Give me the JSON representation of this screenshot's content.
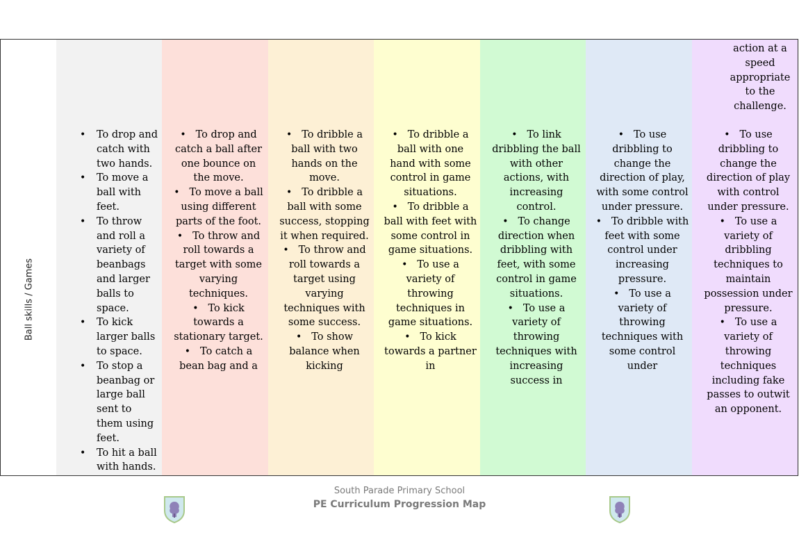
{
  "row_label": "Ball skills / Games",
  "top_row_text": "action at a speed appropriate to the challenge.",
  "columns": [
    {
      "items": [
        "To drop and catch with two hands.",
        "To move a ball with feet.",
        "To throw and roll a variety of beanbags and larger balls to space.",
        "To kick larger balls to space.",
        "To stop a beanbag or large ball sent to them using feet.",
        "To hit a ball with hands."
      ]
    },
    {
      "items": [
        "To drop and catch a ball after one bounce on the move.",
        "To move a ball using different parts of the foot.",
        "To throw and roll towards a target with some varying techniques.",
        "To kick towards a stationary target.",
        "To catch a bean bag and a"
      ]
    },
    {
      "items": [
        "To dribble a ball with two hands on the move.",
        "To dribble a ball with some success, stopping it when required.",
        "To throw and roll towards a target using varying techniques with some success.",
        "To show balance when kicking"
      ]
    },
    {
      "items": [
        "To dribble a ball with one hand with some control in game situations.",
        "To dribble a ball with feet with some control in game situations.",
        "To use a variety of throwing techniques in game situations.",
        "To kick towards a partner in"
      ]
    },
    {
      "items": [
        "To link dribbling the ball with other actions, with increasing control.",
        "To change direction when dribbling with feet, with some control in game situations.",
        "To use a variety of throwing techniques with increasing success in"
      ]
    },
    {
      "items": [
        "To use dribbling to change the direction of play, with some control under pressure.",
        "To dribble with feet with some control under increasing pressure.",
        "To use a variety of throwing techniques with some control under"
      ]
    },
    {
      "items": [
        "To use dribbling to change the direction of play with control under pressure.",
        "To use a variety of dribbling techniques to maintain possession under pressure.",
        "To use a variety of throwing techniques including fake passes to outwit an opponent."
      ]
    }
  ],
  "footer": {
    "school": "South Parade Primary School",
    "title": "PE Curriculum Progression Map"
  }
}
